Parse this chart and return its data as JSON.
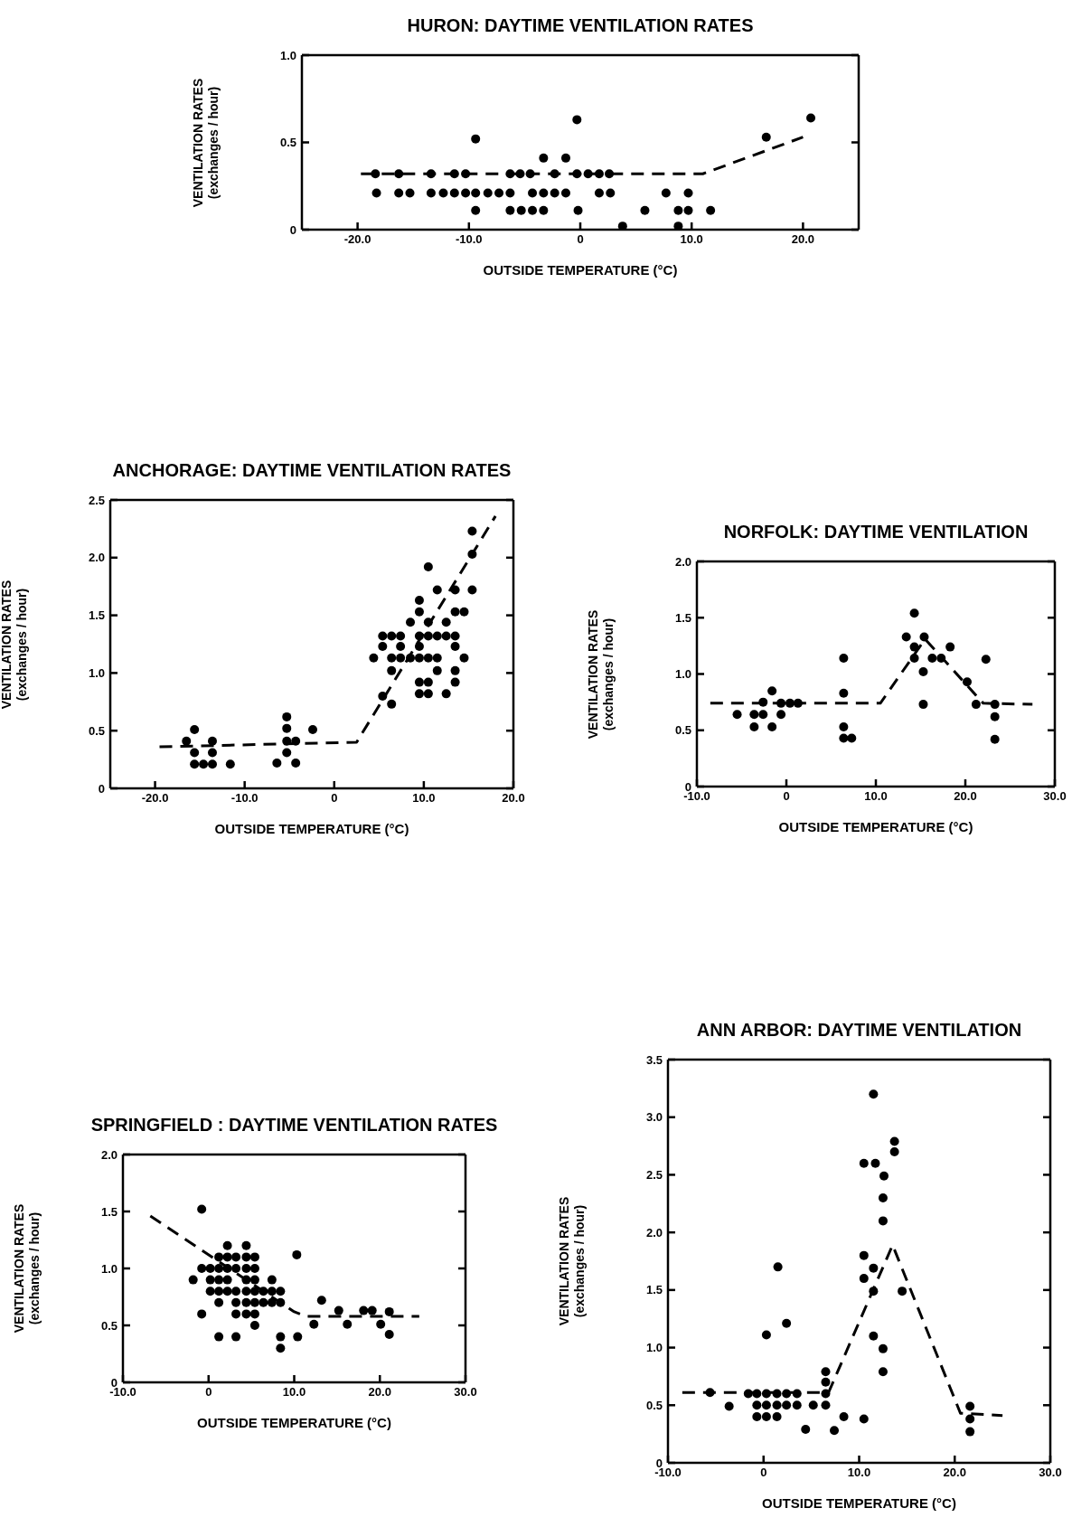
{
  "chart_data": [
    {
      "type": "scatter",
      "title": "HURON: DAYTIME VENTILATION RATES",
      "xlabel": "OUTSIDE TEMPERATURE (°C)",
      "ylabel": "VENTILATION RATES\n(exchanges / hour)",
      "xlim": [
        -25,
        25
      ],
      "ylim": [
        0,
        1
      ],
      "xticks": [
        {
          "value": -20,
          "label": "-20.0"
        },
        {
          "value": -10,
          "label": "-10.0"
        },
        {
          "value": 0,
          "label": "0"
        },
        {
          "value": 10,
          "label": "10.0"
        },
        {
          "value": 20,
          "label": "20.0"
        }
      ],
      "yticks": [
        {
          "value": 0,
          "label": "0"
        },
        {
          "value": 0.5,
          "label": "0.5"
        },
        {
          "value": 1,
          "label": "1.0"
        }
      ],
      "series": [
        {
          "type": "scatter",
          "color": "#000000",
          "marker": "circle",
          "x": [
            -18.4,
            -16.3,
            -13.4,
            -11.3,
            -10.3,
            -6.3,
            -5.4,
            -4.5,
            -2.3,
            -0.3,
            0.7,
            1.7,
            2.6,
            -18.3,
            -16.3,
            -15.3,
            -13.4,
            -12.3,
            -11.3,
            -10.3,
            -9.4,
            -8.3,
            -7.3,
            -6.3,
            -4.3,
            -3.3,
            -2.3,
            -1.3,
            1.7,
            2.7,
            7.7,
            9.7,
            -9.4,
            -6.3,
            -5.3,
            -4.3,
            -3.3,
            -0.2,
            5.8,
            8.8,
            9.7,
            11.7,
            3.8,
            8.8,
            -3.3,
            -1.3,
            -9.4,
            -0.3,
            16.7,
            20.7
          ],
          "values": [
            0.32,
            0.32,
            0.32,
            0.32,
            0.32,
            0.32,
            0.32,
            0.32,
            0.32,
            0.32,
            0.32,
            0.32,
            0.32,
            0.21,
            0.21,
            0.21,
            0.21,
            0.21,
            0.21,
            0.21,
            0.21,
            0.21,
            0.21,
            0.21,
            0.21,
            0.21,
            0.21,
            0.21,
            0.21,
            0.21,
            0.21,
            0.21,
            0.11,
            0.11,
            0.11,
            0.11,
            0.11,
            0.11,
            0.11,
            0.11,
            0.11,
            0.11,
            0.02,
            0.02,
            0.41,
            0.41,
            0.52,
            0.63,
            0.53,
            0.64
          ]
        },
        {
          "type": "line",
          "color": "#000000",
          "marker": "none",
          "line_style": "dashed",
          "x": [
            -19.7,
            11,
            20
          ],
          "values": [
            0.32,
            0.32,
            0.53
          ]
        }
      ]
    },
    {
      "type": "scatter",
      "title": "ANCHORAGE: DAYTIME VENTILATION RATES",
      "xlabel": "OUTSIDE TEMPERATURE (°C)",
      "ylabel": "VENTILATION RATES\n(exchanges / hour)",
      "xlim": [
        -25,
        20
      ],
      "ylim": [
        0,
        2.5
      ],
      "xticks": [
        {
          "value": -20,
          "label": "-20.0"
        },
        {
          "value": -10,
          "label": "-10.0"
        },
        {
          "value": 0,
          "label": "0"
        },
        {
          "value": 10,
          "label": "10.0"
        },
        {
          "value": 20,
          "label": "20.0"
        }
      ],
      "yticks": [
        {
          "value": 0,
          "label": "0"
        },
        {
          "value": 0.5,
          "label": "0.5"
        },
        {
          "value": 1,
          "label": "1.0"
        },
        {
          "value": 1.5,
          "label": "1.5"
        },
        {
          "value": 2,
          "label": "2.0"
        },
        {
          "value": 2.5,
          "label": "2.5"
        }
      ],
      "series": [
        {
          "type": "scatter",
          "color": "#000000",
          "marker": "circle",
          "x": [
            -15.6,
            -16.5,
            -13.6,
            -15.6,
            -13.6,
            -15.6,
            -14.6,
            -13.6,
            -11.6,
            -5.3,
            -5.3,
            -5.3,
            -4.3,
            -5.3,
            -6.4,
            -4.3,
            -2.4,
            5.4,
            6.4,
            7.4,
            9.5,
            10.5,
            11.5,
            12.5,
            13.5,
            5.4,
            7.4,
            9.5,
            13.5,
            4.4,
            6.4,
            7.4,
            8.5,
            9.5,
            10.5,
            11.5,
            14.5,
            6.4,
            11.5,
            13.5,
            9.5,
            10.5,
            13.5,
            9.5,
            10.5,
            12.5,
            6.4,
            5.4,
            8.5,
            9.5,
            9.5,
            10.5,
            12.5,
            11.5,
            13.5,
            10.5,
            13.5,
            14.5,
            15.4,
            15.4,
            15.4
          ],
          "values": [
            0.51,
            0.41,
            0.41,
            0.31,
            0.31,
            0.21,
            0.21,
            0.21,
            0.21,
            0.62,
            0.52,
            0.41,
            0.41,
            0.31,
            0.22,
            0.22,
            0.51,
            1.32,
            1.32,
            1.32,
            1.32,
            1.32,
            1.32,
            1.32,
            1.32,
            1.23,
            1.23,
            1.23,
            1.23,
            1.13,
            1.13,
            1.13,
            1.13,
            1.13,
            1.13,
            1.13,
            1.13,
            1.02,
            1.02,
            1.02,
            0.92,
            0.92,
            0.92,
            0.82,
            0.82,
            0.82,
            0.73,
            0.8,
            1.44,
            1.53,
            1.63,
            1.44,
            1.44,
            1.72,
            1.72,
            1.92,
            1.53,
            1.53,
            1.72,
            2.03,
            2.23
          ]
        },
        {
          "type": "line",
          "color": "#000000",
          "marker": "none",
          "line_style": "dashed",
          "x": [
            -19.5,
            2.5,
            18
          ],
          "values": [
            0.36,
            0.4,
            2.36
          ]
        }
      ]
    },
    {
      "type": "scatter",
      "title": "NORFOLK: DAYTIME VENTILATION",
      "xlabel": "OUTSIDE TEMPERATURE (°C)",
      "ylabel": "VENTILATION RATES\n(exchanges / hour)",
      "xlim": [
        -10,
        30
      ],
      "ylim": [
        0,
        2
      ],
      "xticks": [
        {
          "value": -10,
          "label": "-10.0"
        },
        {
          "value": 0,
          "label": "0"
        },
        {
          "value": 10,
          "label": "10.0"
        },
        {
          "value": 20,
          "label": "20.0"
        },
        {
          "value": 30,
          "label": "30.0"
        }
      ],
      "yticks": [
        {
          "value": 0,
          "label": "0"
        },
        {
          "value": 0.5,
          "label": "0.5"
        },
        {
          "value": 1,
          "label": "1.0"
        },
        {
          "value": 1.5,
          "label": "1.5"
        },
        {
          "value": 2,
          "label": "2.0"
        }
      ],
      "series": [
        {
          "type": "scatter",
          "color": "#000000",
          "marker": "circle",
          "x": [
            -5.5,
            -3.6,
            -2.6,
            -0.6,
            -3.6,
            -1.6,
            -2.6,
            -1.6,
            -0.6,
            0.4,
            1.3,
            6.4,
            6.4,
            6.4,
            6.4,
            7.3,
            13.4,
            14.3,
            14.3,
            14.3,
            15.4,
            15.3,
            15.3,
            16.3,
            17.3,
            18.3,
            20.2,
            21.2,
            22.3,
            23.3,
            23.3,
            23.3
          ],
          "values": [
            0.64,
            0.64,
            0.64,
            0.64,
            0.53,
            0.53,
            0.75,
            0.85,
            0.74,
            0.74,
            0.74,
            1.14,
            0.83,
            0.53,
            0.43,
            0.43,
            1.33,
            1.54,
            1.24,
            1.14,
            1.33,
            1.02,
            0.73,
            1.14,
            1.14,
            1.24,
            0.93,
            0.73,
            1.13,
            0.73,
            0.62,
            0.42
          ]
        },
        {
          "type": "line",
          "color": "#000000",
          "marker": "none",
          "line_style": "dashed",
          "x": [
            -8.5,
            10.5,
            15.5,
            22,
            27.5
          ],
          "values": [
            0.74,
            0.74,
            1.31,
            0.74,
            0.73
          ]
        }
      ]
    },
    {
      "type": "scatter",
      "title": "SPRINGFIELD : DAYTIME VENTILATION RATES",
      "xlabel": "OUTSIDE TEMPERATURE (°C)",
      "ylabel": "VENTILATION RATES\n(exchanges / hour)",
      "xlim": [
        -10,
        30
      ],
      "ylim": [
        0,
        2
      ],
      "xticks": [
        {
          "value": -10,
          "label": "-10.0"
        },
        {
          "value": 0,
          "label": "0"
        },
        {
          "value": 10,
          "label": "10.0"
        },
        {
          "value": 20,
          "label": "20.0"
        },
        {
          "value": 30,
          "label": "30.0"
        }
      ],
      "yticks": [
        {
          "value": 0,
          "label": "0"
        },
        {
          "value": 0.5,
          "label": "0.5"
        },
        {
          "value": 1,
          "label": "1.0"
        },
        {
          "value": 1.5,
          "label": "1.5"
        },
        {
          "value": 2,
          "label": "2.0"
        }
      ],
      "series": [
        {
          "type": "scatter",
          "color": "#000000",
          "marker": "circle",
          "x": [
            2.2,
            4.4,
            1.2,
            2.2,
            3.2,
            4.4,
            5.4,
            -0.8,
            0.2,
            1.2,
            2.2,
            3.2,
            4.4,
            5.4,
            -1.8,
            0.2,
            1.2,
            2.2,
            4.4,
            5.4,
            7.4,
            0.2,
            1.2,
            2.2,
            3.2,
            4.4,
            5.4,
            6.4,
            7.4,
            8.4,
            1.2,
            3.2,
            4.4,
            5.4,
            6.4,
            7.4,
            8.4,
            -0.8,
            3.2,
            4.4,
            5.4,
            5.4,
            1.2,
            3.2,
            8.4,
            10.4,
            8.4,
            -0.8,
            10.3,
            12.3,
            13.2,
            15.2,
            16.2,
            18.1,
            19.1,
            20.1,
            21.1,
            21.1
          ],
          "values": [
            1.2,
            1.2,
            1.1,
            1.1,
            1.1,
            1.1,
            1.1,
            1,
            1,
            1,
            1,
            1,
            1,
            1,
            0.9,
            0.9,
            0.9,
            0.9,
            0.9,
            0.9,
            0.9,
            0.8,
            0.8,
            0.8,
            0.8,
            0.8,
            0.8,
            0.8,
            0.8,
            0.8,
            0.7,
            0.7,
            0.7,
            0.7,
            0.7,
            0.7,
            0.7,
            0.6,
            0.6,
            0.6,
            0.6,
            0.5,
            0.4,
            0.4,
            0.4,
            0.4,
            0.3,
            1.52,
            1.12,
            0.51,
            0.72,
            0.63,
            0.51,
            0.63,
            0.63,
            0.51,
            0.42,
            0.62
          ]
        },
        {
          "type": "line",
          "color": "#000000",
          "marker": "none",
          "line_style": "dashed",
          "x": [
            -6.8,
            10,
            11.4,
            24.6
          ],
          "values": [
            1.46,
            0.62,
            0.58,
            0.58
          ]
        }
      ]
    },
    {
      "type": "scatter",
      "title": "ANN ARBOR: DAYTIME VENTILATION",
      "xlabel": "OUTSIDE TEMPERATURE (°C)",
      "ylabel": "VENTILATION RATES\n(exchanges / hour)",
      "xlim": [
        -10,
        30
      ],
      "ylim": [
        0,
        3.5
      ],
      "xticks": [
        {
          "value": -10,
          "label": "-10.0"
        },
        {
          "value": 0,
          "label": "0"
        },
        {
          "value": 10,
          "label": "10.0"
        },
        {
          "value": 20,
          "label": "20.0"
        },
        {
          "value": 30,
          "label": "30.0"
        }
      ],
      "yticks": [
        {
          "value": 0,
          "label": "0"
        },
        {
          "value": 0.5,
          "label": "0.5"
        },
        {
          "value": 1,
          "label": "1.0"
        },
        {
          "value": 1.5,
          "label": "1.5"
        },
        {
          "value": 2,
          "label": "2.0"
        },
        {
          "value": 2.5,
          "label": "2.5"
        },
        {
          "value": 3,
          "label": "3.0"
        },
        {
          "value": 3.5,
          "label": "3.5"
        }
      ],
      "series": [
        {
          "type": "scatter",
          "color": "#000000",
          "marker": "circle",
          "x": [
            -5.6,
            -3.6,
            -1.6,
            -0.7,
            0.3,
            1.4,
            2.4,
            3.5,
            6.5,
            -0.7,
            0.3,
            1.4,
            2.4,
            3.5,
            5.2,
            6.5,
            -0.7,
            0.3,
            1.4,
            4.4,
            7.4,
            8.4,
            10.5,
            6.5,
            6.5,
            0.3,
            1.5,
            2.4,
            10.5,
            10.5,
            11.5,
            11.5,
            11.5,
            12.5,
            12.5,
            14.5,
            11.5,
            10.5,
            11.7,
            12.6,
            12.5,
            12.5,
            13.7,
            13.7,
            21.6,
            21.6,
            21.6
          ],
          "values": [
            0.61,
            0.49,
            0.6,
            0.6,
            0.6,
            0.6,
            0.6,
            0.6,
            0.6,
            0.5,
            0.5,
            0.5,
            0.5,
            0.5,
            0.5,
            0.5,
            0.4,
            0.4,
            0.4,
            0.29,
            0.28,
            0.4,
            0.38,
            0.7,
            0.79,
            1.11,
            1.7,
            1.21,
            1.8,
            1.6,
            1.69,
            1.49,
            1.1,
            0.99,
            0.79,
            1.49,
            3.2,
            2.6,
            2.6,
            2.49,
            2.3,
            2.1,
            2.79,
            2.7,
            0.49,
            0.38,
            0.27
          ]
        },
        {
          "type": "line",
          "color": "#000000",
          "marker": "none",
          "line_style": "dashed",
          "x": [
            -8.5,
            6.8,
            13.5,
            20.6,
            25
          ],
          "values": [
            0.61,
            0.61,
            1.89,
            0.43,
            0.41
          ]
        }
      ]
    }
  ]
}
